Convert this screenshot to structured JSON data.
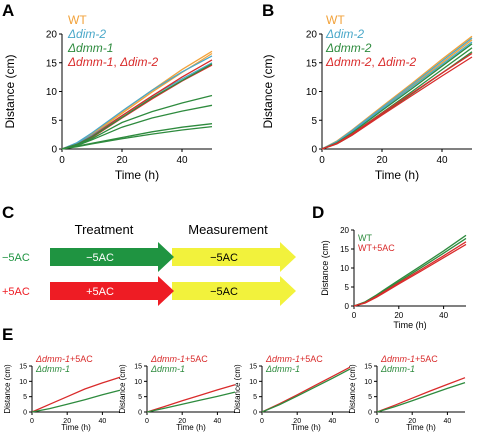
{
  "colors": {
    "wt": "#f2a23a",
    "dim2": "#4aa8c9",
    "dmm1": "#2e8b3e",
    "double": "#d92b2b",
    "treat_green": "#1f9441",
    "treat_red": "#ee1c24",
    "measure_yellow": "#f2f23c",
    "black": "#000000"
  },
  "panel_letters": [
    "A",
    "B",
    "C",
    "D",
    "E"
  ],
  "chart_data": [
    {
      "id": "A",
      "type": "line",
      "xlabel": "Time (h)",
      "ylabel": "Distance (cm)",
      "xlim": [
        0,
        50
      ],
      "ylim": [
        0,
        20
      ],
      "xticks": [
        0,
        20,
        40
      ],
      "yticks": [
        0,
        5,
        10,
        15,
        20
      ],
      "legend_position": "top-left",
      "legend": [
        {
          "label": "WT",
          "color": "#f2a23a"
        },
        {
          "label": "Δdim-2",
          "color": "#4aa8c9"
        },
        {
          "label": "Δdmm-1",
          "color": "#2e8b3e"
        },
        {
          "label": "Δdmm-1, Δdim-2",
          "color": "#d92b2b"
        }
      ],
      "series": [
        {
          "color": "#f2a23a",
          "x": [
            0,
            5,
            10,
            20,
            30,
            40,
            50
          ],
          "y": [
            0,
            1.0,
            2.6,
            6.5,
            10.2,
            13.8,
            17.0
          ]
        },
        {
          "color": "#f2a23a",
          "x": [
            0,
            5,
            10,
            20,
            30,
            40,
            50
          ],
          "y": [
            0,
            0.9,
            2.5,
            6.2,
            9.9,
            13.3,
            16.6
          ]
        },
        {
          "color": "#4aa8c9",
          "x": [
            0,
            5,
            10,
            20,
            30,
            40,
            50
          ],
          "y": [
            0,
            1.1,
            2.8,
            6.6,
            10.2,
            13.4,
            16.2
          ]
        },
        {
          "color": "#4aa8c9",
          "x": [
            0,
            5,
            10,
            20,
            30,
            40,
            50
          ],
          "y": [
            0,
            1.0,
            2.4,
            5.8,
            9.2,
            12.2,
            15.0
          ]
        },
        {
          "color": "#d92b2b",
          "x": [
            0,
            5,
            10,
            20,
            30,
            40,
            50
          ],
          "y": [
            0,
            0.8,
            2.2,
            5.8,
            9.2,
            12.5,
            15.5
          ]
        },
        {
          "color": "#d92b2b",
          "x": [
            0,
            5,
            10,
            20,
            30,
            40,
            50
          ],
          "y": [
            0,
            0.8,
            2.0,
            5.4,
            8.7,
            11.8,
            14.6
          ]
        },
        {
          "color": "#2e8b3e",
          "x": [
            0,
            5,
            10,
            20,
            30,
            40,
            50
          ],
          "y": [
            0,
            0.8,
            2.1,
            5.5,
            8.9,
            11.9,
            14.8
          ]
        },
        {
          "color": "#2e8b3e",
          "x": [
            0,
            5,
            10,
            20,
            30,
            40,
            50
          ],
          "y": [
            0,
            0.7,
            1.8,
            4.6,
            6.5,
            8.0,
            9.3
          ]
        },
        {
          "color": "#2e8b3e",
          "x": [
            0,
            5,
            10,
            20,
            30,
            40,
            50
          ],
          "y": [
            0,
            0.6,
            1.6,
            3.8,
            5.4,
            6.6,
            7.6
          ]
        },
        {
          "color": "#2e8b3e",
          "x": [
            0,
            5,
            10,
            20,
            30,
            40,
            50
          ],
          "y": [
            0,
            0.5,
            1.0,
            2.0,
            3.0,
            3.8,
            4.4
          ]
        },
        {
          "color": "#2e8b3e",
          "x": [
            0,
            5,
            10,
            20,
            30,
            40,
            50
          ],
          "y": [
            0,
            0.4,
            0.9,
            1.8,
            2.6,
            3.3,
            3.9
          ]
        }
      ]
    },
    {
      "id": "B",
      "type": "line",
      "xlabel": "Time (h)",
      "ylabel": "Distance (cm)",
      "xlim": [
        0,
        50
      ],
      "ylim": [
        0,
        20
      ],
      "xticks": [
        0,
        20,
        40
      ],
      "yticks": [
        0,
        5,
        10,
        15,
        20
      ],
      "legend_position": "top-left",
      "legend": [
        {
          "label": "WT",
          "color": "#f2a23a"
        },
        {
          "label": "Δdim-2",
          "color": "#4aa8c9"
        },
        {
          "label": "Δdmm-2",
          "color": "#2e8b3e"
        },
        {
          "label": "Δdmm-2, Δdim-2",
          "color": "#d92b2b"
        }
      ],
      "series": [
        {
          "color": "#f2a23a",
          "x": [
            0,
            5,
            10,
            20,
            30,
            40,
            50
          ],
          "y": [
            0,
            1.4,
            3.3,
            7.4,
            11.4,
            15.6,
            19.6
          ]
        },
        {
          "color": "#f2a23a",
          "x": [
            0,
            5,
            10,
            20,
            30,
            40,
            50
          ],
          "y": [
            0,
            1.3,
            3.1,
            7.0,
            11.0,
            15.0,
            19.0
          ]
        },
        {
          "color": "#4aa8c9",
          "x": [
            0,
            5,
            10,
            20,
            30,
            40,
            50
          ],
          "y": [
            0,
            1.3,
            3.2,
            7.2,
            11.2,
            15.3,
            19.3
          ]
        },
        {
          "color": "#4aa8c9",
          "x": [
            0,
            5,
            10,
            20,
            30,
            40,
            50
          ],
          "y": [
            0,
            1.2,
            3.0,
            6.9,
            10.8,
            14.7,
            18.6
          ]
        },
        {
          "color": "#2e8b3e",
          "x": [
            0,
            5,
            10,
            20,
            30,
            40,
            50
          ],
          "y": [
            0,
            1.1,
            2.8,
            6.7,
            10.5,
            14.4,
            18.3
          ]
        },
        {
          "color": "#2e8b3e",
          "x": [
            0,
            5,
            10,
            20,
            30,
            40,
            50
          ],
          "y": [
            0,
            1.0,
            2.6,
            6.3,
            10.0,
            13.8,
            17.6
          ]
        },
        {
          "color": "#2e8b3e",
          "x": [
            0,
            5,
            10,
            20,
            30,
            40,
            50
          ],
          "y": [
            0,
            0.9,
            2.4,
            6.0,
            9.6,
            13.2,
            16.9
          ]
        },
        {
          "color": "#d92b2b",
          "x": [
            0,
            5,
            10,
            20,
            30,
            40,
            50
          ],
          "y": [
            0,
            1.0,
            2.6,
            6.2,
            9.7,
            13.2,
            16.6
          ]
        },
        {
          "color": "#d92b2b",
          "x": [
            0,
            5,
            10,
            20,
            30,
            40,
            50
          ],
          "y": [
            0,
            0.9,
            2.4,
            5.9,
            9.3,
            12.7,
            16.0
          ]
        }
      ]
    },
    {
      "id": "D",
      "type": "line",
      "xlabel": "Time (h)",
      "ylabel": "Distance (cm)",
      "xlim": [
        0,
        50
      ],
      "ylim": [
        0,
        20
      ],
      "xticks": [
        0,
        20,
        40
      ],
      "yticks": [
        0,
        5,
        10,
        15,
        20
      ],
      "legend_position": "top-left",
      "legend": [
        {
          "label": "WT",
          "color": "#2e8b3e"
        },
        {
          "label": "WT+5AC",
          "color": "#d92b2b"
        }
      ],
      "series": [
        {
          "color": "#2e8b3e",
          "x": [
            0,
            5,
            10,
            20,
            30,
            40,
            50
          ],
          "y": [
            0,
            1.1,
            2.9,
            6.8,
            10.6,
            14.5,
            18.6
          ]
        },
        {
          "color": "#2e8b3e",
          "x": [
            0,
            5,
            10,
            20,
            30,
            40,
            50
          ],
          "y": [
            0,
            1.0,
            2.7,
            6.4,
            10.1,
            13.9,
            17.8
          ]
        },
        {
          "color": "#d92b2b",
          "x": [
            0,
            5,
            10,
            20,
            30,
            40,
            50
          ],
          "y": [
            0,
            0.9,
            2.5,
            6.1,
            9.6,
            13.2,
            16.9
          ]
        },
        {
          "color": "#d92b2b",
          "x": [
            0,
            5,
            10,
            20,
            30,
            40,
            50
          ],
          "y": [
            0,
            0.8,
            2.3,
            5.8,
            9.2,
            12.7,
            16.2
          ]
        }
      ]
    },
    {
      "id": "E1",
      "type": "line",
      "xlabel": "Time (h)",
      "ylabel": "Distance (cm)",
      "xlim": [
        0,
        50
      ],
      "ylim": [
        0,
        15
      ],
      "xticks": [
        0,
        20,
        40
      ],
      "yticks": [
        0,
        5,
        10,
        15
      ],
      "legend_position": "top-left",
      "legend": [
        {
          "label": "Δdmm-1+5AC",
          "color": "#d92b2b"
        },
        {
          "label": "Δdmm-1",
          "color": "#2e8b3e"
        }
      ],
      "series": [
        {
          "color": "#d92b2b",
          "x": [
            0,
            10,
            20,
            30,
            40,
            50
          ],
          "y": [
            0,
            2.5,
            5.0,
            7.5,
            9.5,
            11.3
          ]
        },
        {
          "color": "#2e8b3e",
          "x": [
            0,
            10,
            20,
            30,
            40,
            50
          ],
          "y": [
            0,
            1.1,
            2.5,
            4.0,
            5.6,
            7.1
          ]
        }
      ]
    },
    {
      "id": "E2",
      "type": "line",
      "xlabel": "Time (h)",
      "ylabel": "Distance (cm)",
      "xlim": [
        0,
        50
      ],
      "ylim": [
        0,
        15
      ],
      "xticks": [
        0,
        20,
        40
      ],
      "yticks": [
        0,
        5,
        10,
        15
      ],
      "legend_position": "top-left",
      "legend": [
        {
          "label": "Δdmm-1+5AC",
          "color": "#d92b2b"
        },
        {
          "label": "Δdmm-1",
          "color": "#2e8b3e"
        }
      ],
      "series": [
        {
          "color": "#d92b2b",
          "x": [
            0,
            10,
            20,
            30,
            40,
            50
          ],
          "y": [
            0,
            1.8,
            3.7,
            5.4,
            7.2,
            8.9
          ]
        },
        {
          "color": "#2e8b3e",
          "x": [
            0,
            10,
            20,
            30,
            40,
            50
          ],
          "y": [
            0,
            1.2,
            2.5,
            3.8,
            5.1,
            6.5
          ]
        }
      ]
    },
    {
      "id": "E3",
      "type": "line",
      "xlabel": "Time (h)",
      "ylabel": "Distance (cm)",
      "xlim": [
        0,
        50
      ],
      "ylim": [
        0,
        15
      ],
      "xticks": [
        0,
        20,
        40
      ],
      "yticks": [
        0,
        5,
        10,
        15
      ],
      "legend_position": "top-left",
      "legend": [
        {
          "label": "Δdmm-1+5AC",
          "color": "#d92b2b"
        },
        {
          "label": "Δdmm-1",
          "color": "#2e8b3e"
        }
      ],
      "series": [
        {
          "color": "#d92b2b",
          "x": [
            0,
            10,
            20,
            30,
            40,
            50
          ],
          "y": [
            0,
            2.7,
            5.6,
            8.6,
            11.6,
            14.6
          ]
        },
        {
          "color": "#2e8b3e",
          "x": [
            0,
            10,
            20,
            30,
            40,
            50
          ],
          "y": [
            0,
            2.4,
            5.2,
            8.1,
            11.0,
            14.0
          ]
        }
      ]
    },
    {
      "id": "E4",
      "type": "line",
      "xlabel": "Time (h)",
      "ylabel": "Distance (cm)",
      "xlim": [
        0,
        50
      ],
      "ylim": [
        0,
        15
      ],
      "xticks": [
        0,
        20,
        40
      ],
      "yticks": [
        0,
        5,
        10,
        15
      ],
      "legend_position": "top-left",
      "legend": [
        {
          "label": "Δdmm-1+5AC",
          "color": "#d92b2b"
        },
        {
          "label": "Δdmm-1",
          "color": "#2e8b3e"
        }
      ],
      "series": [
        {
          "color": "#d92b2b",
          "x": [
            0,
            10,
            20,
            30,
            40,
            50
          ],
          "y": [
            0,
            2.2,
            4.5,
            6.8,
            9.0,
            11.2
          ]
        },
        {
          "color": "#2e8b3e",
          "x": [
            0,
            10,
            20,
            30,
            40,
            50
          ],
          "y": [
            0,
            1.7,
            3.7,
            5.7,
            7.7,
            9.6
          ]
        }
      ]
    }
  ],
  "schematic": {
    "treatment_header": "Treatment",
    "measurement_header": "Measurement",
    "rows": [
      {
        "row_label": "−5AC",
        "row_label_color": "#1f9441",
        "treat_label": "−5AC",
        "treat_color": "#1f9441",
        "measure_label": "−5AC",
        "measure_color": "#f2f23c"
      },
      {
        "row_label": "+5AC",
        "row_label_color": "#ee1c24",
        "treat_label": "+5AC",
        "treat_color": "#ee1c24",
        "measure_label": "−5AC",
        "measure_color": "#f2f23c"
      }
    ]
  }
}
